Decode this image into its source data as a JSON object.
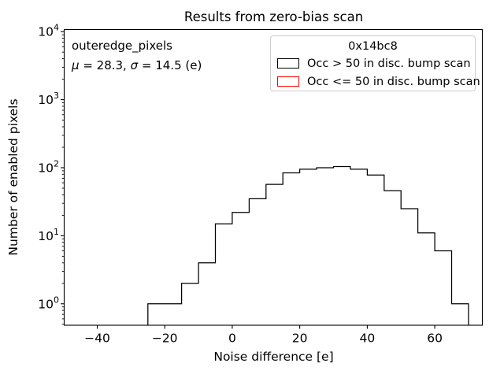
{
  "annotation": {
    "dataset": "outeredge_pixels",
    "stats_text": "μ = 28.3, σ = 14.5 (e)",
    "stats_parts": [
      {
        "text": "μ",
        "italic": true
      },
      {
        "text": " = 28.3, ",
        "italic": false
      },
      {
        "text": "σ",
        "italic": true
      },
      {
        "text": " = 14.5 (e)",
        "italic": false
      }
    ]
  },
  "legend": {
    "title": "0x14bc8",
    "entries": [
      {
        "label": "Occ > 50 in disc. bump scan",
        "color": "#000000"
      },
      {
        "label": "Occ <= 50 in disc. bump scan",
        "color": "#ff0000"
      }
    ]
  },
  "chart_data": {
    "type": "bar",
    "subtype": "step-histogram",
    "title": "Results from zero-bias scan",
    "xlabel": "Noise difference [e]",
    "ylabel": "Number of enabled pixels",
    "yscale": "log",
    "grid": false,
    "legend_position": "upper right",
    "xlim": [
      -49.8,
      74.1
    ],
    "ylim": [
      0.484,
      10740
    ],
    "bin_edges": [
      -25,
      -20,
      -15,
      -10,
      -5,
      0,
      5,
      10,
      15,
      20,
      25,
      30,
      35,
      40,
      45,
      50,
      55,
      60,
      65,
      70
    ],
    "series": [
      {
        "name": "Occ > 50 in disc. bump scan",
        "color": "#000000",
        "counts": [
          1,
          1,
          2,
          4,
          15,
          22,
          35,
          57,
          84,
          95,
          100,
          104,
          95,
          78,
          46,
          25,
          11,
          6,
          1
        ]
      },
      {
        "name": "Occ <= 50 in disc. bump scan",
        "color": "#ff0000",
        "counts": []
      }
    ],
    "x_ticks": [
      {
        "value": -40,
        "label": "−40"
      },
      {
        "value": -20,
        "label": "−20"
      },
      {
        "value": 0,
        "label": "0"
      },
      {
        "value": 20,
        "label": "20"
      },
      {
        "value": 40,
        "label": "40"
      },
      {
        "value": 60,
        "label": "60"
      }
    ],
    "y_ticks": [
      {
        "exp": 0,
        "label": "10^0"
      },
      {
        "exp": 1,
        "label": "10^1"
      },
      {
        "exp": 2,
        "label": "10^2"
      },
      {
        "exp": 3,
        "label": "10^3"
      },
      {
        "exp": 4,
        "label": "10^4"
      }
    ]
  }
}
